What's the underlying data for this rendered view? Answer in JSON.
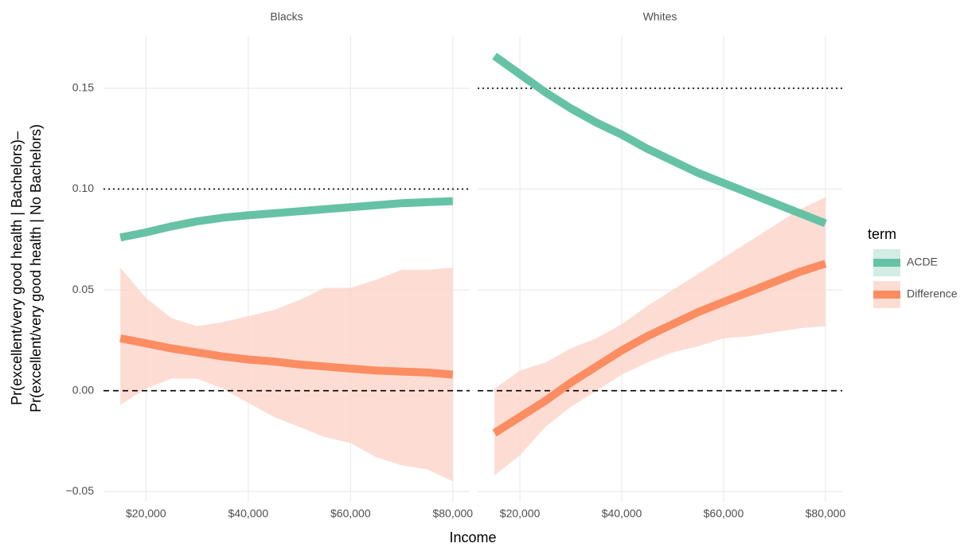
{
  "chart_data": {
    "type": "line",
    "x_label": "Income",
    "y_label": [
      "Pr(excellent/very good health | Bachelors)–",
      "Pr(excellent/very good health | No Bachelors)"
    ],
    "legend_title": "term",
    "ribbon_color": "#fcd5c8",
    "series": [
      {
        "name": "ACDE",
        "color": "#66c2a5"
      },
      {
        "name": "Difference",
        "color": "#fc8d62"
      }
    ],
    "x": [
      15000,
      20000,
      25000,
      30000,
      35000,
      40000,
      45000,
      50000,
      55000,
      60000,
      65000,
      70000,
      75000,
      80000
    ],
    "xlim": [
      11700,
      83300
    ],
    "xticks": [
      {
        "value": 20000,
        "label": "$20,000"
      },
      {
        "value": 40000,
        "label": "$40,000"
      },
      {
        "value": 60000,
        "label": "$60,000"
      },
      {
        "value": 80000,
        "label": "$80,000"
      }
    ],
    "ylim": [
      -0.055,
      0.176
    ],
    "yticks": [
      {
        "value": -0.05,
        "label": "−0.05"
      },
      {
        "value": 0,
        "label": "0.00"
      },
      0.05,
      {
        "value": 0.1,
        "label": "0.10"
      },
      0.15
    ],
    "facets": [
      {
        "title": "Blacks",
        "lines": [
          {
            "values": [
              0.076,
              0.0785,
              0.0815,
              0.084,
              0.0858,
              0.087,
              0.088,
              0.089,
              0.09,
              0.091,
              0.092,
              0.093,
              0.0935,
              0.094
            ]
          },
          {
            "values": [
              0.026,
              0.0235,
              0.021,
              0.019,
              0.017,
              0.0155,
              0.0145,
              0.013,
              0.012,
              0.011,
              0.01,
              0.0095,
              0.009,
              0.008
            ],
            "lower": [
              -0.007,
              0.001,
              0.006,
              0.006,
              0.001,
              -0.006,
              -0.013,
              -0.018,
              -0.023,
              -0.026,
              -0.033,
              -0.037,
              -0.039,
              -0.045
            ],
            "upper": [
              0.061,
              0.046,
              0.036,
              0.032,
              0.034,
              0.037,
              0.04,
              0.045,
              0.051,
              0.051,
              0.055,
              0.06,
              0.06,
              0.061
            ]
          }
        ],
        "hlines": [
          {
            "value": 0.1,
            "style": "dotted"
          },
          {
            "value": 0,
            "style": "dashed"
          }
        ]
      },
      {
        "title": "Whites",
        "lines": [
          {
            "values": [
              0.166,
              0.157,
              0.148,
              0.14,
              0.133,
              0.127,
              0.12,
              0.114,
              0.108,
              0.103,
              0.098,
              0.093,
              0.088,
              0.083
            ]
          },
          {
            "values": [
              -0.021,
              -0.013,
              -0.005,
              0.004,
              0.012,
              0.02,
              0.027,
              0.033,
              0.039,
              0.044,
              0.049,
              0.054,
              0.059,
              0.063
            ],
            "lower": [
              -0.042,
              -0.032,
              -0.018,
              -0.008,
              0,
              0.008,
              0.014,
              0.019,
              0.022,
              0.026,
              0.027,
              0.029,
              0.031,
              0.032
            ],
            "upper": [
              0.001,
              0.01,
              0.014,
              0.021,
              0.026,
              0.033,
              0.042,
              0.05,
              0.058,
              0.066,
              0.074,
              0.082,
              0.09,
              0.096
            ]
          }
        ],
        "hlines": [
          {
            "value": 0.15,
            "style": "dotted"
          },
          {
            "value": 0,
            "style": "dashed"
          }
        ]
      }
    ]
  }
}
